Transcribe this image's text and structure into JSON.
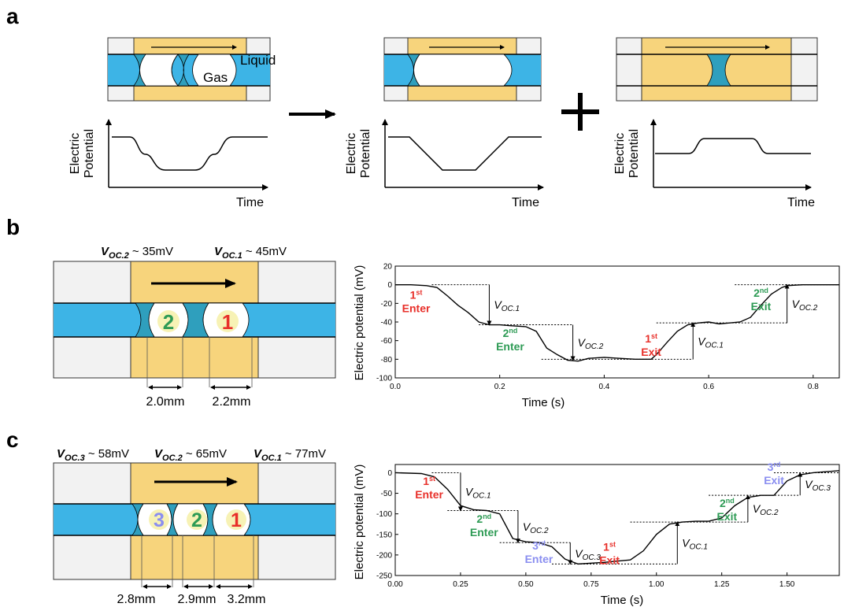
{
  "panels": {
    "a": {
      "label": "a",
      "gas": "Gas",
      "liquid": "Liquid",
      "ylabel_line1": "Electric",
      "ylabel_line2": "Potential",
      "xlabel": "Time",
      "plus": "+"
    },
    "b": {
      "label": "b",
      "voc2_prefix": "V",
      "voc2_sub": "OC.2",
      "voc2_val": " ~ 35mV",
      "voc1_prefix": "V",
      "voc1_sub": "OC.1",
      "voc1_val": " ~ 45mV",
      "slug2": "2",
      "slug1": "1",
      "dim_left": "2.0mm",
      "dim_right": "2.2mm"
    },
    "c": {
      "label": "c",
      "voc3_prefix": "V",
      "voc3_sub": "OC.3",
      "voc3_val": " ~ 58mV",
      "voc2_prefix": "V",
      "voc2_sub": "OC.2",
      "voc2_val": " ~ 65mV",
      "voc1_prefix": "V",
      "voc1_sub": "OC.1",
      "voc1_val": " ~ 77mV",
      "slug3": "3",
      "slug2": "2",
      "slug1": "1",
      "dim_left": "2.8mm",
      "dim_mid": "2.9mm",
      "dim_right": "3.2mm"
    }
  },
  "colors": {
    "liquid": "#3db4e6",
    "electrode": "#f7d47c",
    "frame": "#f2f2f2",
    "meniscus": "#2f9fbd",
    "red": "#e8302a",
    "green": "#2e9b55",
    "purple": "#8a8ef0"
  },
  "chart_data": [
    {
      "type": "line",
      "xlabel": "Time (s)",
      "ylabel": "Electric potential (mV)",
      "xlim": [
        0,
        0.85
      ],
      "ylim": [
        -100,
        20
      ],
      "xticks": [
        "0.0",
        "0.2",
        "0.4",
        "0.6",
        "0.8"
      ],
      "yticks": [
        "20",
        "0",
        "-20",
        "-40",
        "-60",
        "-80",
        "-100"
      ],
      "x": [
        0.0,
        0.03,
        0.06,
        0.08,
        0.1,
        0.12,
        0.14,
        0.16,
        0.18,
        0.2,
        0.22,
        0.25,
        0.27,
        0.29,
        0.31,
        0.33,
        0.35,
        0.37,
        0.4,
        0.43,
        0.46,
        0.49,
        0.5,
        0.52,
        0.54,
        0.56,
        0.58,
        0.6,
        0.62,
        0.64,
        0.66,
        0.68,
        0.7,
        0.72,
        0.74,
        0.75,
        0.78,
        0.8,
        0.85
      ],
      "y": [
        0,
        0,
        -1,
        -3,
        -12,
        -22,
        -30,
        -40,
        -43,
        -43,
        -44,
        -45,
        -50,
        -68,
        -75,
        -81,
        -82,
        -79,
        -78,
        -79,
        -80,
        -80,
        -75,
        -62,
        -50,
        -43,
        -41,
        -40,
        -42,
        -41,
        -40,
        -35,
        -22,
        -10,
        -3,
        -1,
        0,
        0,
        0
      ],
      "annotations": [
        {
          "sup": "st",
          "num": "1",
          "word": "Enter",
          "color": "red"
        },
        {
          "sup": "nd",
          "num": "2",
          "word": "Enter",
          "color": "green"
        },
        {
          "sup": "st",
          "num": "1",
          "word": "Exit",
          "color": "red"
        },
        {
          "sup": "nd",
          "num": "2",
          "word": "Exit",
          "color": "green"
        }
      ],
      "arrows": [
        {
          "name": "V",
          "sub": "OC.1"
        },
        {
          "name": "V",
          "sub": "OC.2"
        },
        {
          "name": "V",
          "sub": "OC.1"
        },
        {
          "name": "V",
          "sub": "OC.2"
        }
      ]
    },
    {
      "type": "line",
      "xlabel": "Time (s)",
      "ylabel": "Electric potential (mV)",
      "xlim": [
        0,
        1.7
      ],
      "ylim": [
        -250,
        20
      ],
      "xticks": [
        "0.00",
        "0.25",
        "0.50",
        "0.75",
        "1.00",
        "1.25",
        "1.50"
      ],
      "yticks": [
        "0",
        "-50",
        "-100",
        "-150",
        "-200",
        "-250"
      ],
      "x": [
        0.0,
        0.1,
        0.15,
        0.2,
        0.25,
        0.3,
        0.35,
        0.4,
        0.45,
        0.5,
        0.55,
        0.6,
        0.65,
        0.7,
        0.75,
        0.8,
        0.85,
        0.9,
        0.95,
        1.0,
        1.05,
        1.1,
        1.15,
        1.2,
        1.25,
        1.3,
        1.35,
        1.4,
        1.45,
        1.5,
        1.55,
        1.6,
        1.7
      ],
      "y": [
        0,
        -2,
        -10,
        -40,
        -80,
        -90,
        -92,
        -100,
        -160,
        -168,
        -170,
        -180,
        -210,
        -222,
        -220,
        -218,
        -215,
        -212,
        -190,
        -150,
        -125,
        -120,
        -118,
        -118,
        -110,
        -80,
        -60,
        -55,
        -55,
        -20,
        -5,
        0,
        5
      ],
      "annotations": [
        {
          "sup": "st",
          "num": "1",
          "word": "Enter",
          "color": "red"
        },
        {
          "sup": "nd",
          "num": "2",
          "word": "Enter",
          "color": "green"
        },
        {
          "sup": "rd",
          "num": "3",
          "word": "Enter",
          "color": "purple"
        },
        {
          "sup": "st",
          "num": "1",
          "word": "Exit",
          "color": "red"
        },
        {
          "sup": "nd",
          "num": "2",
          "word": "Exit",
          "color": "green"
        },
        {
          "sup": "rd",
          "num": "3",
          "word": "Exit",
          "color": "purple"
        }
      ],
      "arrows": [
        {
          "name": "V",
          "sub": "OC.1"
        },
        {
          "name": "V",
          "sub": "OC.2"
        },
        {
          "name": "V",
          "sub": "OC.3"
        },
        {
          "name": "V",
          "sub": "OC.1"
        },
        {
          "name": "V",
          "sub": "OC.2"
        },
        {
          "name": "V",
          "sub": "OC.3"
        }
      ]
    }
  ]
}
